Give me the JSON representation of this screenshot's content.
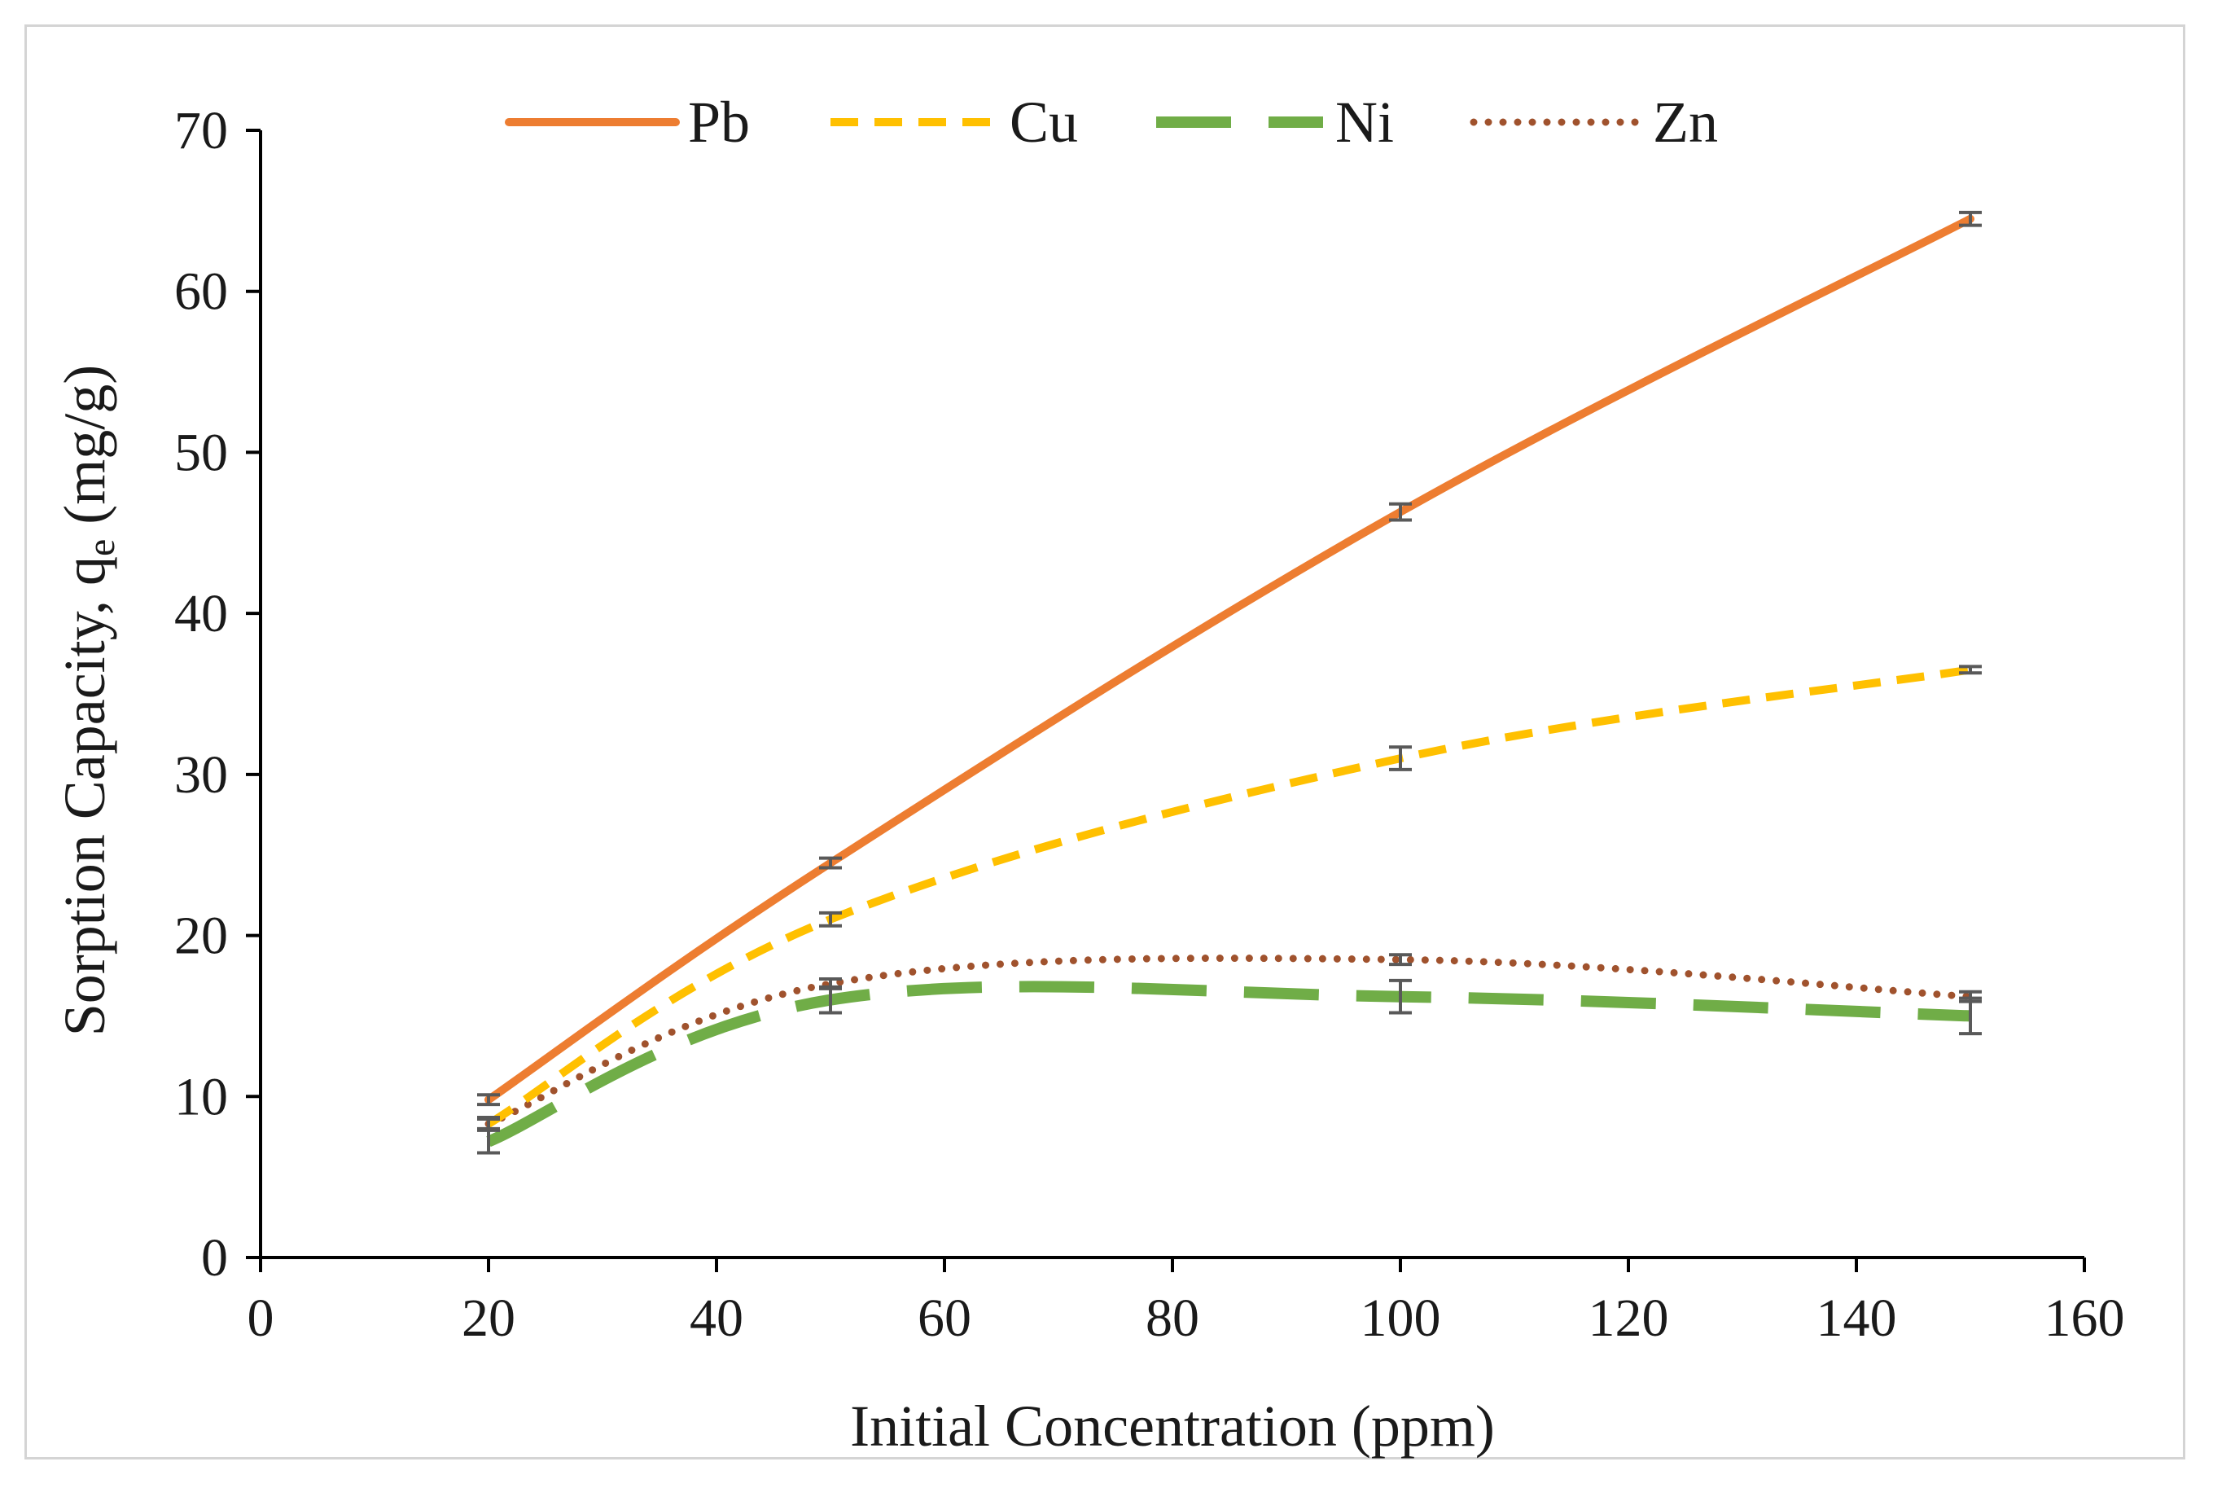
{
  "chart_data": {
    "type": "line",
    "title": "",
    "xlabel": "Initial Concentration (ppm)",
    "ylabel_main": "Sorption Capacity, q",
    "ylabel_sub": "e",
    "ylabel_unit": " (mg/g)",
    "xlim": [
      0,
      160
    ],
    "ylim": [
      0,
      70
    ],
    "xticks": [
      "0",
      "20",
      "40",
      "60",
      "80",
      "100",
      "120",
      "140",
      "160"
    ],
    "yticks": [
      "0",
      "10",
      "20",
      "30",
      "40",
      "50",
      "60",
      "70"
    ],
    "grid": false,
    "legend_position": "top",
    "x": [
      20,
      50,
      100,
      150
    ],
    "series": [
      {
        "name": "Pb",
        "values": [
          9.8,
          24.5,
          46.3,
          64.5
        ],
        "errors": [
          0.3,
          0.3,
          0.5,
          0.4
        ],
        "color": "#ED7D31",
        "style": "solid"
      },
      {
        "name": "Cu",
        "values": [
          8.3,
          21.0,
          31.0,
          36.5
        ],
        "errors": [
          0.4,
          0.4,
          0.7,
          0.2
        ],
        "color": "#FFC000",
        "style": "dash"
      },
      {
        "name": "Ni",
        "values": [
          7.2,
          16.0,
          16.2,
          15.0
        ],
        "errors": [
          0.7,
          0.8,
          1.0,
          1.1
        ],
        "color": "#70AD47",
        "style": "longdash"
      },
      {
        "name": "Zn",
        "values": [
          8.3,
          17.0,
          18.5,
          16.2
        ],
        "errors": [
          0.3,
          0.3,
          0.3,
          0.3
        ],
        "color": "#A0522D",
        "style": "dot"
      }
    ]
  }
}
